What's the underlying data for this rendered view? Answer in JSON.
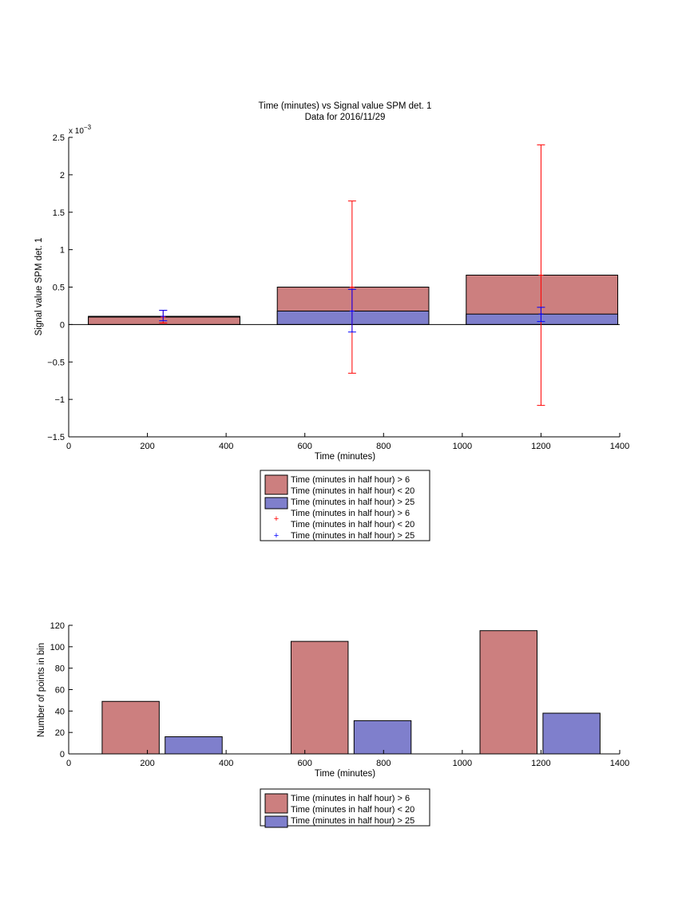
{
  "chart_data": [
    {
      "type": "bar",
      "title": "Time (minutes) vs Signal value SPM det. 1",
      "subtitle": "Data for 2016/11/29",
      "xlabel": "Time (minutes)",
      "ylabel": "Signal value SPM det. 1",
      "y_exponent_label": "x 10",
      "y_exponent_power": "−3",
      "xlim": [
        0,
        1400
      ],
      "ylim": [
        -1.5,
        2.5
      ],
      "xticks": [
        0,
        200,
        400,
        600,
        800,
        1000,
        1200,
        1400
      ],
      "yticks": [
        -1.5,
        -1,
        -0.5,
        0,
        0.5,
        1,
        1.5,
        2,
        2.5
      ],
      "yticklabels": [
        "−1.5",
        "−1",
        "−0.5",
        "0",
        "0.5",
        "1",
        "1.5",
        "2",
        "2.5"
      ],
      "grid": false,
      "legend_position": "below",
      "colors": {
        "red_bar": "#cc7f7f",
        "blue_bar": "#7f7fcc",
        "red_err": "#ff0000",
        "blue_err": "#0000ff"
      },
      "bars": [
        {
          "x_range": [
            50,
            435
          ],
          "red": 0.1,
          "blue": 0.11
        },
        {
          "x_range": [
            530,
            915
          ],
          "red": 0.5,
          "blue": 0.18
        },
        {
          "x_range": [
            1010,
            1395
          ],
          "red": 0.66,
          "blue": 0.14
        }
      ],
      "error_bars": [
        {
          "series": "red",
          "x": 240,
          "y": 0.1,
          "low": 0.02,
          "high": 0.19
        },
        {
          "series": "blue",
          "x": 240,
          "y": 0.11,
          "low": 0.05,
          "high": 0.19
        },
        {
          "series": "red",
          "x": 720,
          "y": 0.5,
          "low": -0.65,
          "high": 1.65
        },
        {
          "series": "blue",
          "x": 720,
          "y": 0.18,
          "low": -0.1,
          "high": 0.47
        },
        {
          "series": "red",
          "x": 1200,
          "y": 0.66,
          "low": -1.08,
          "high": 2.4
        },
        {
          "series": "blue",
          "x": 1200,
          "y": 0.14,
          "low": 0.04,
          "high": 0.23
        }
      ],
      "legend": [
        {
          "kind": "patch",
          "color": "red",
          "lines": [
            "Time (minutes in half hour) > 6",
            "Time (minutes in half hour) < 20"
          ]
        },
        {
          "kind": "patch",
          "color": "blue",
          "lines": [
            "Time (minutes in half hour) > 25"
          ]
        },
        {
          "kind": "marker",
          "color": "red",
          "lines": [
            "Time (minutes in half hour) > 6",
            "Time (minutes in half hour) < 20"
          ]
        },
        {
          "kind": "marker",
          "color": "blue",
          "lines": [
            "Time (minutes in half hour) > 25"
          ]
        }
      ]
    },
    {
      "type": "bar",
      "title": "",
      "xlabel": "Time (minutes)",
      "ylabel": "Number of points in bin",
      "xlim": [
        0,
        1400
      ],
      "ylim": [
        0,
        120
      ],
      "xticks": [
        0,
        200,
        400,
        600,
        800,
        1000,
        1200,
        1400
      ],
      "yticks": [
        0,
        20,
        40,
        60,
        80,
        100,
        120
      ],
      "grid": false,
      "legend_position": "below",
      "bars": [
        {
          "series": "red",
          "x_range": [
            85,
            230
          ],
          "value": 49
        },
        {
          "series": "blue",
          "x_range": [
            245,
            390
          ],
          "value": 16
        },
        {
          "series": "red",
          "x_range": [
            565,
            710
          ],
          "value": 105
        },
        {
          "series": "blue",
          "x_range": [
            725,
            870
          ],
          "value": 31
        },
        {
          "series": "red",
          "x_range": [
            1045,
            1190
          ],
          "value": 115
        },
        {
          "series": "blue",
          "x_range": [
            1205,
            1350
          ],
          "value": 38
        }
      ],
      "legend": [
        {
          "kind": "patch",
          "color": "red",
          "lines": [
            "Time (minutes in half hour) > 6",
            "Time (minutes in half hour) < 20"
          ]
        },
        {
          "kind": "patch",
          "color": "blue",
          "lines": [
            "Time (minutes in half hour) > 25"
          ]
        }
      ]
    }
  ]
}
